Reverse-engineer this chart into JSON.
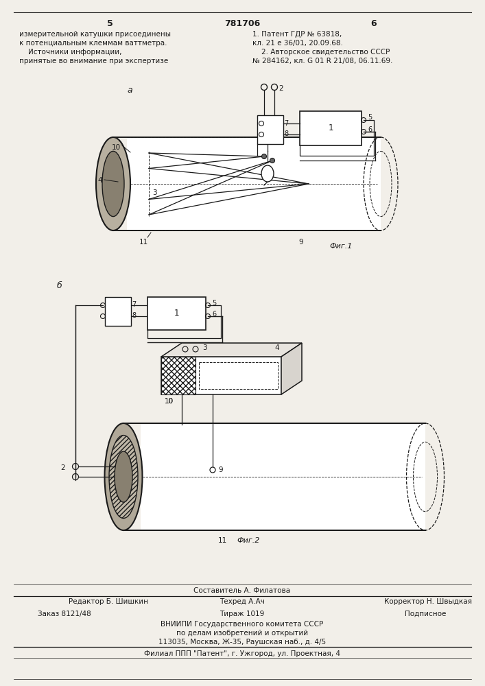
{
  "bg_color": "#f2efe9",
  "page_color": "#f2efe9",
  "top_left_text": [
    "измерительной катушки присоединены",
    "к потенциальным клеммам ваттметра.",
    "    Источники информации,",
    "принятые во внимание при экспертизе"
  ],
  "top_right_text": [
    "1. Патент ГДР № 63818,",
    "кл. 21 е 36/01, 20.09.68.",
    "    2. Авторское свидетельство СССР",
    "№ 284162, кл. G 01 R 21/08, 06.11.69."
  ],
  "page_num_left": "5",
  "page_num_center": "781706",
  "page_num_right": "6",
  "fig1_label": "а",
  "fig2_label": "б",
  "fig1_caption": "Фиг.1",
  "fig2_caption": "Фиг.2",
  "bottom_text_1": "Составитель А. Филатова",
  "bottom_text_2_left": "Редактор Б. Шишкин",
  "bottom_text_2_mid": "Техред А.Ач",
  "bottom_text_2_right": "Корректор Н. Швыдкая",
  "bottom_order": "Заказ 8121/48",
  "bottom_tirazh": "Тираж 1019",
  "bottom_podp": "Подписное",
  "bottom_text_4": "ВНИИПИ Государственного комитета СССР",
  "bottom_text_5": "по делам изобретений и открытий",
  "bottom_text_6": "113035, Москва, Ж-35, Раушская наб., д. 4/5",
  "bottom_text_7": "Филиал ППП \"Патент\", г. Ужгород, ул. Проектная, 4",
  "line_color": "#1a1a1a",
  "text_color": "#1a1a1a",
  "hatch_color": "#1a1a1a"
}
